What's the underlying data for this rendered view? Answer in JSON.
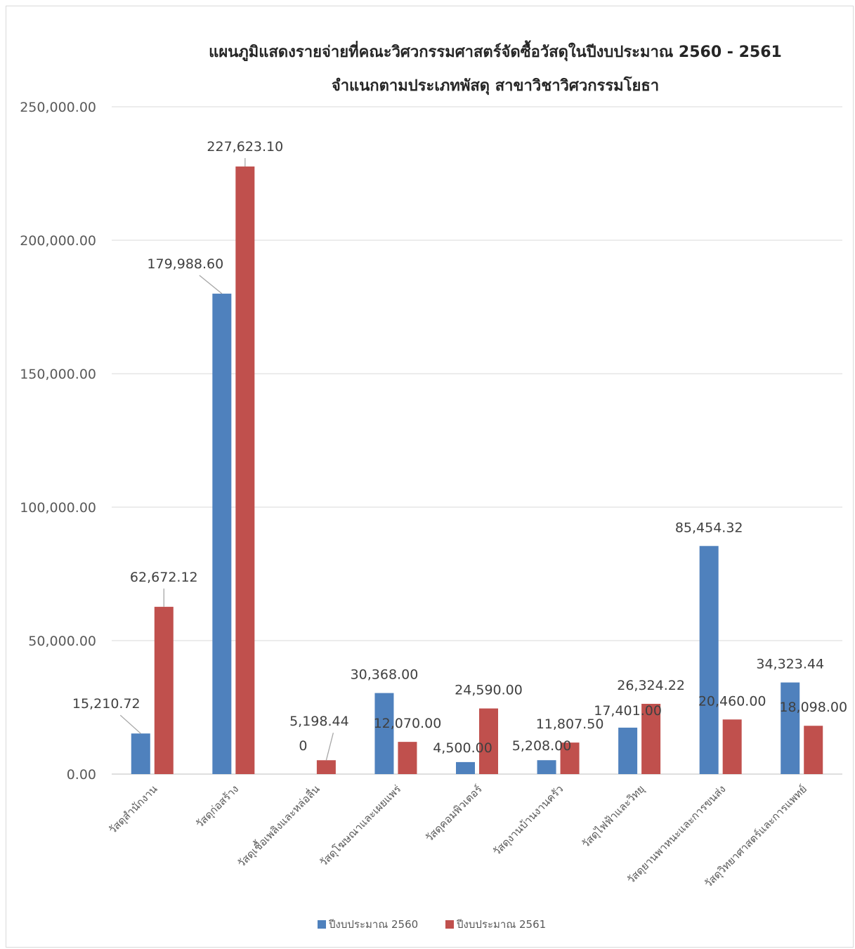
{
  "chart_data": {
    "type": "bar",
    "title": "แผนภูมิแสดงรายจ่ายที่คณะวิศวกรรมศาสตร์จัดซื้อวัสดุในปีงบประมาณ 2560 - 2561",
    "subtitle": "จำแนกตามประเภทพัสดุ สาขาวิชาวิศวกรรมโยธา",
    "xlabel": "",
    "ylabel": "",
    "ylim": [
      0,
      250000
    ],
    "yticks": [
      "0.00",
      "50,000.00",
      "100,000.00",
      "150,000.00",
      "200,000.00",
      "250,000.00"
    ],
    "grid": true,
    "legend_position": "bottom",
    "categories": [
      "วัสดุสำนักงาน",
      "วัสดุก่อสร้าง",
      "วัสดุเชื้อเพลิงและหล่อลื่น",
      "วัสดุโฆษณาและเผยแพร่",
      "วัสดุคอมพิวเตอร์",
      "วัสดุงานบ้านงานครัว",
      "วัสดุไฟฟ้าและวิทยุ",
      "วัสดุยานพาหนะและการขนส่ง",
      "วัสดุวิทยาศาสตร์และการแพทย์"
    ],
    "series": [
      {
        "name": "ปีงบประมาณ 2560",
        "color": "#4f81bd",
        "values": [
          15210.72,
          179988.6,
          0,
          30368.0,
          4500.0,
          5208.0,
          17401.0,
          85454.32,
          34323.44
        ],
        "labels": [
          "15,210.72",
          "179,988.60",
          "0",
          "30,368.00",
          "4,500.00",
          "5,208.00",
          "17,401.00",
          "85,454.32",
          "34,323.44"
        ]
      },
      {
        "name": "ปีงบประมาณ 2561",
        "color": "#c0504d",
        "values": [
          62672.12,
          227623.1,
          5198.44,
          12070.0,
          24590.0,
          11807.5,
          26324.22,
          20460.0,
          18098.0
        ],
        "labels": [
          "62,672.12",
          "227,623.10",
          "5,198.44",
          "12,070.00",
          "24,590.00",
          "11,807.50",
          "26,324.22",
          "20,460.00",
          "18,098.00"
        ]
      }
    ]
  }
}
